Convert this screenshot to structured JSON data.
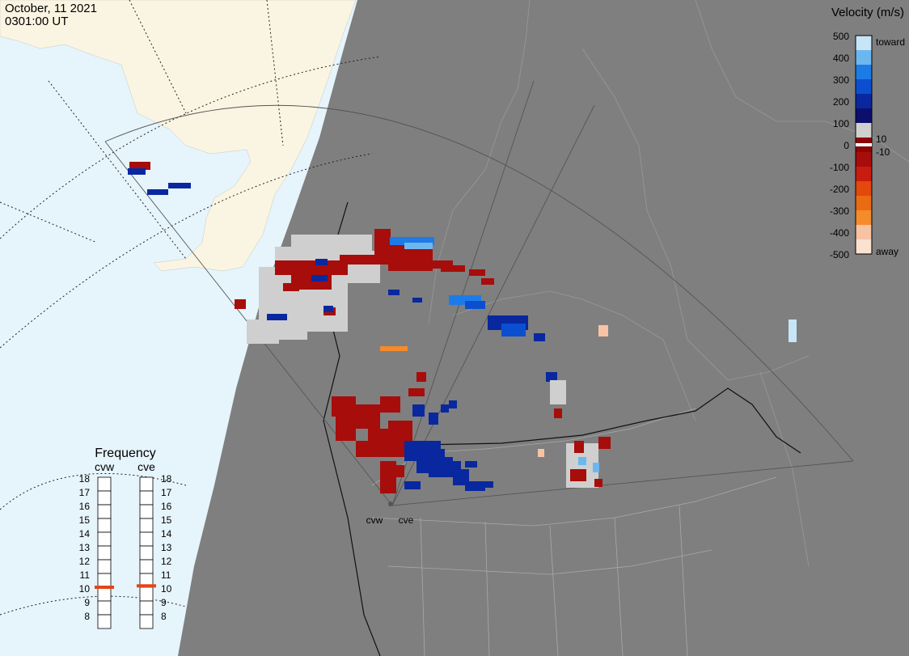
{
  "header": {
    "date": "October, 11 2021",
    "time": "0301:00 UT"
  },
  "colorbar": {
    "title": "Velocity (m/s)",
    "ticks": [
      "500",
      "400",
      "300",
      "200",
      "100",
      "0",
      "-100",
      "-200",
      "-300",
      "-400",
      "-500"
    ],
    "small_ticks": [
      "10",
      "-10"
    ],
    "toward_label": "toward",
    "away_label": "away",
    "colors": [
      "#fbe1cf",
      "#f7c3a4",
      "#f58b2a",
      "#ea6c12",
      "#e3480c",
      "#c81c10",
      "#a70d0a",
      "#8d0606",
      "#d0d0d0",
      "#0c0f6b",
      "#09289f",
      "#0b4fd0",
      "#1d7be7",
      "#6cb7f0",
      "#c6e6f8"
    ]
  },
  "frequency": {
    "title": "Frequency",
    "radars": [
      "cvw",
      "cve"
    ],
    "levels": [
      "18",
      "17",
      "16",
      "15",
      "14",
      "13",
      "12",
      "11",
      "10",
      "9",
      "8"
    ],
    "values_mhz": [
      10.5,
      10.6
    ]
  },
  "radar_labels": [
    "cvw",
    "cve"
  ],
  "colors": {
    "night": "#7f7f7f",
    "ocean_day": "#e6f4fc",
    "land_day": "#faf5e2",
    "away": "#a70d0a",
    "toward": "#09289f",
    "ground_scatter": "#cfcfcf",
    "freq_marker": "#e1461a"
  }
}
